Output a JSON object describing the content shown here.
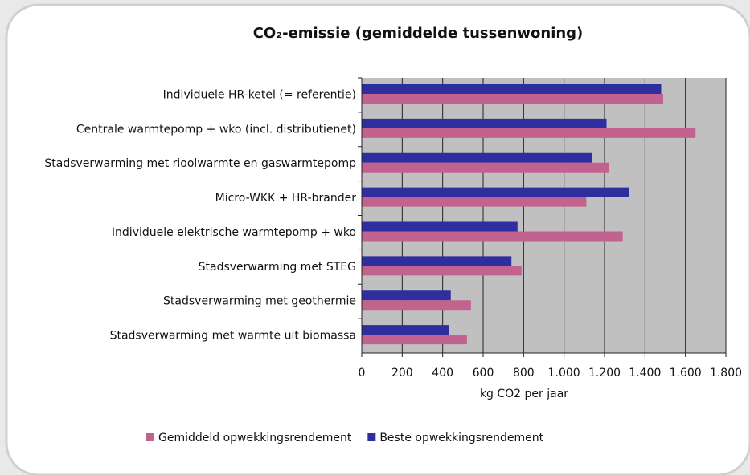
{
  "chart_data": {
    "type": "hbar",
    "title": "CO₂-emissie (gemiddelde tussenwoning)",
    "x_label": "kg CO2 per jaar",
    "categories": [
      "Individuele HR-ketel (= referentie)",
      "Centrale warmtepomp + wko (incl. distributienet)",
      "Stadsverwarming met rioolwarmte en gaswarmtepomp",
      "Micro-WKK + HR-brander",
      "Individuele elektrische warmtepomp + wko",
      "Stadsverwarming met STEG",
      "Stadsverwarming met geothermie",
      "Stadsverwarming met warmte uit biomassa"
    ],
    "series": [
      {
        "name": "Gemiddeld opwekkingsrendement",
        "color": "#c2628f",
        "values": [
          1490,
          1650,
          1220,
          1110,
          1290,
          790,
          540,
          520
        ]
      },
      {
        "name": "Beste opwekkingsrendement",
        "color": "#2e2e9e",
        "values": [
          1480,
          1210,
          1140,
          1320,
          770,
          740,
          440,
          430
        ]
      }
    ],
    "xlim": [
      0,
      1800
    ],
    "xticks": [
      0,
      200,
      400,
      600,
      800,
      {
        "value": 1000,
        "label": "1.000"
      },
      {
        "value": 1200,
        "label": "1.200"
      },
      {
        "value": 1400,
        "label": "1.400"
      },
      {
        "value": 1600,
        "label": "1.600"
      },
      {
        "value": 1800,
        "label": "1.800"
      }
    ],
    "grid": true,
    "legend": "bottom"
  }
}
